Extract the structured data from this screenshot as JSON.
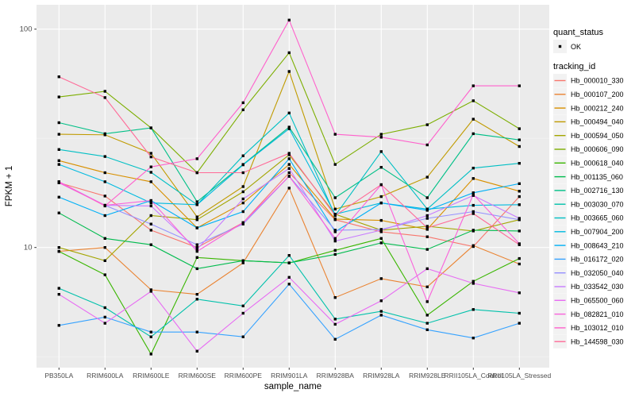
{
  "figure": {
    "background": "#FFFFFF",
    "panel_background": "#EBEBEB",
    "grid_major_color": "#FFFFFF",
    "grid_minor_color": "#F5F5F5",
    "tick_color": "#333333",
    "tick_label_color": "#4D4D4D",
    "axis_title_color": "#000000",
    "point_color": "#000000",
    "legend_key_background": "#F2F2F2"
  },
  "legend": {
    "quant_status_title": "quant_status",
    "quant_status_items": [
      {
        "label": "OK",
        "marker": "black-point"
      }
    ],
    "tracking_id_title": "tracking_id"
  },
  "chart_data": {
    "type": "line",
    "xlabel": "sample_name",
    "ylabel": "FPKM + 1",
    "y_scale": "log10",
    "y_ticks": [
      10,
      100
    ],
    "y_minor_ticks": [
      3.162,
      31.62
    ],
    "ylim": [
      2.8,
      129
    ],
    "grid": true,
    "legend_position": "right",
    "categories": [
      "PB350LA",
      "RRIM600LA",
      "RRIM600LE",
      "RRIM600SE",
      "RRIM600PE",
      "RRIM901LA",
      "RRIM928BA",
      "RRIM928LA",
      "RRIM928LE",
      "RRII105LA_Control",
      "RRII105LA_Stressed"
    ],
    "series": [
      {
        "name": "Hb_000010_330",
        "color": "#F8766D",
        "values": [
          19.8,
          17.2,
          12,
          10,
          13,
          22,
          13.4,
          11.8,
          11.2,
          10.1,
          17.1
        ]
      },
      {
        "name": "Hb_000107_200",
        "color": "#EA8331",
        "values": [
          9.6,
          10,
          6.4,
          6.1,
          8.5,
          18.7,
          5.9,
          7.2,
          6.6,
          10.2,
          8.4
        ]
      },
      {
        "name": "Hb_000212_240",
        "color": "#D89000",
        "values": [
          25,
          22,
          20,
          12.3,
          16,
          24,
          13.5,
          13.3,
          12.1,
          20.7,
          18.1
        ]
      },
      {
        "name": "Hb_000494_040",
        "color": "#C09B00",
        "values": [
          33,
          32.8,
          27,
          13.8,
          19,
          64,
          15,
          17.1,
          21,
          38.7,
          29
        ]
      },
      {
        "name": "Hb_000594_050",
        "color": "#A3A500",
        "values": [
          10,
          8.7,
          14,
          13.4,
          18,
          26.6,
          14.2,
          12,
          12.5,
          11.9,
          13.4
        ]
      },
      {
        "name": "Hb_000606_090",
        "color": "#7CAE00",
        "values": [
          48.9,
          51.9,
          35.3,
          22,
          42.7,
          78,
          24,
          33,
          36.5,
          47,
          35
        ]
      },
      {
        "name": "Hb_000618_040",
        "color": "#39B600",
        "values": [
          9.6,
          7.5,
          3.25,
          9,
          8.7,
          8.5,
          9.7,
          11,
          4.9,
          7,
          8.9
        ]
      },
      {
        "name": "Hb_001135_060",
        "color": "#00BB4E",
        "values": [
          14.4,
          11,
          10.3,
          8,
          8.7,
          8.5,
          9.3,
          10.5,
          9.8,
          12,
          11.9
        ]
      },
      {
        "name": "Hb_002716_130",
        "color": "#00C087",
        "values": [
          37.3,
          33.2,
          35.3,
          16.2,
          24,
          35.6,
          16.9,
          23.3,
          16.9,
          33.2,
          31.1
        ]
      },
      {
        "name": "Hb_003030_070",
        "color": "#00C1AB",
        "values": [
          6.5,
          5.3,
          3.9,
          5.8,
          5.4,
          9.2,
          4.7,
          5.1,
          4.5,
          5.2,
          5
        ]
      },
      {
        "name": "Hb_003665_060",
        "color": "#00BFC4",
        "values": [
          28.1,
          26.1,
          22.1,
          15.7,
          26.3,
          41.3,
          14,
          27.5,
          15,
          23.1,
          24.3
        ]
      },
      {
        "name": "Hb_007904_200",
        "color": "#00BAE0",
        "values": [
          24,
          20,
          16,
          15.7,
          23.9,
          35,
          14.2,
          16,
          15,
          15.6,
          15.7
        ]
      },
      {
        "name": "Hb_008643_210",
        "color": "#00B0F6",
        "values": [
          17,
          14,
          16.4,
          12.3,
          14.6,
          25.5,
          11.8,
          16,
          14.8,
          17.8,
          19.6
        ]
      },
      {
        "name": "Hb_016172_020",
        "color": "#35A2FF",
        "values": [
          4.4,
          4.8,
          4.1,
          4.1,
          3.9,
          6.8,
          3.8,
          4.9,
          4.2,
          3.85,
          4.5
        ]
      },
      {
        "name": "Hb_032050_040",
        "color": "#9590FF",
        "values": [
          19.8,
          15.6,
          12.8,
          10.3,
          12.8,
          21.2,
          12,
          12.1,
          13.6,
          14.6,
          13.4
        ]
      },
      {
        "name": "Hb_033542_030",
        "color": "#C77CFF",
        "values": [
          20,
          15.6,
          15.5,
          9.8,
          16.7,
          23,
          10.7,
          12,
          14,
          17.3,
          13.6
        ]
      },
      {
        "name": "Hb_065500_060",
        "color": "#E76BF3",
        "values": [
          6.1,
          4.5,
          6.3,
          3.35,
          5,
          7.3,
          4.45,
          5.7,
          8,
          6.85,
          6.2
        ]
      },
      {
        "name": "Hb_082821_010",
        "color": "#FA62DB",
        "values": [
          19.8,
          15.6,
          16.4,
          9.6,
          13,
          21.2,
          11,
          19.4,
          5.65,
          17.5,
          10.4
        ]
      },
      {
        "name": "Hb_103012_010",
        "color": "#FF61CC",
        "values": [
          20,
          15.5,
          23.4,
          25.5,
          46,
          110,
          33,
          32,
          29.5,
          55,
          55
        ]
      },
      {
        "name": "Hb_144598_030",
        "color": "#FF6A98",
        "values": [
          60.5,
          48.6,
          26,
          22,
          22,
          27,
          14,
          19.4,
          12.3,
          14.3,
          10.3
        ]
      }
    ]
  }
}
